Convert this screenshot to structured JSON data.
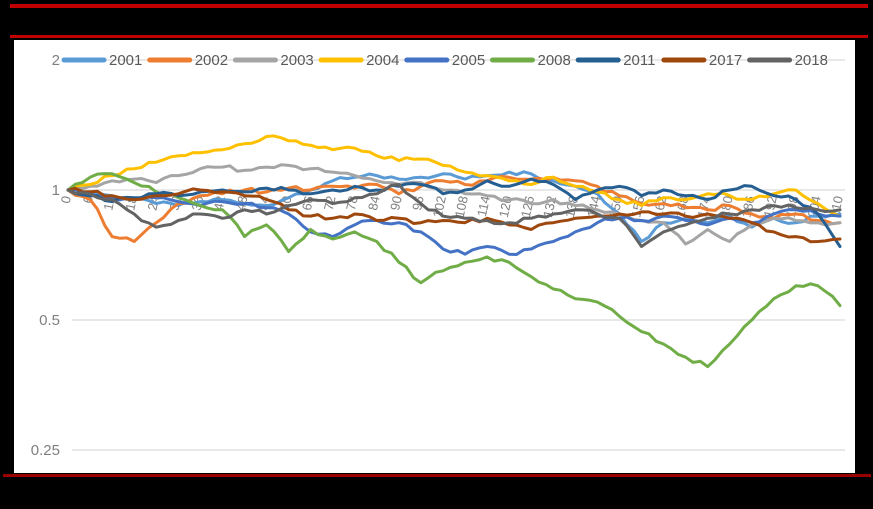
{
  "frame": {
    "background": "#000000",
    "top_rule_color": "#c00000",
    "mid_rule_color": "#c00000",
    "bottom_rule_color": "#990000",
    "panel_background": "#ffffff"
  },
  "chart_data": {
    "type": "line",
    "title": "",
    "xlabel": "",
    "ylabel": "",
    "legend_position": "top",
    "grid": true,
    "style": {
      "gridline_color": "#d9d9d9",
      "axis_label_color": "#7f7f7f",
      "tick_label_color": "#808080",
      "legend_text_color": "#595959"
    },
    "y_axis": {
      "scale": "log2",
      "range": [
        0.25,
        2
      ],
      "ticks": [
        {
          "value": 2,
          "label": "2"
        },
        {
          "value": 1,
          "label": "1"
        },
        {
          "value": 0.5,
          "label": "0.5"
        },
        {
          "value": 0.25,
          "label": "0.25"
        }
      ]
    },
    "x_axis": {
      "range": [
        0,
        215
      ],
      "tick_step": 6,
      "tick_labels": [
        "0",
        "6",
        "12",
        "18",
        "24",
        "30",
        "36",
        "42",
        "48",
        "54",
        "60",
        "66",
        "72",
        "78",
        "84",
        "90",
        "96",
        "102",
        "108",
        "114",
        "120",
        "126",
        "132",
        "138",
        "144",
        "150",
        "156",
        "162",
        "168",
        "174",
        "180",
        "186",
        "192",
        "198",
        "204",
        "210"
      ]
    },
    "x": [
      0,
      6,
      12,
      18,
      24,
      30,
      36,
      42,
      48,
      54,
      60,
      66,
      72,
      78,
      84,
      90,
      96,
      102,
      108,
      114,
      120,
      126,
      132,
      138,
      144,
      150,
      156,
      162,
      168,
      174,
      180,
      186,
      192,
      198,
      204,
      210
    ],
    "series": [
      {
        "name": "2001",
        "color": "#5B9BD5",
        "values": [
          1.0,
          0.99,
          0.97,
          0.95,
          0.93,
          0.92,
          0.94,
          0.95,
          0.93,
          0.92,
          0.96,
          1.0,
          1.05,
          1.07,
          1.08,
          1.06,
          1.07,
          1.09,
          1.06,
          1.08,
          1.1,
          1.09,
          1.05,
          1.02,
          0.98,
          0.88,
          0.76,
          0.84,
          0.86,
          0.84,
          0.87,
          0.82,
          0.86,
          0.84,
          0.87,
          0.88
        ]
      },
      {
        "name": "2002",
        "color": "#ED7D31",
        "values": [
          1.0,
          0.95,
          0.78,
          0.76,
          0.84,
          0.93,
          0.97,
          0.98,
          1.0,
          0.99,
          1.01,
          1.0,
          1.02,
          1.01,
          1.03,
          0.98,
          1.02,
          1.05,
          1.03,
          1.05,
          1.07,
          1.06,
          1.07,
          1.05,
          1.02,
          0.97,
          0.93,
          0.93,
          0.91,
          0.9,
          0.92,
          0.88,
          0.86,
          0.88,
          0.85,
          0.84
        ]
      },
      {
        "name": "2003",
        "color": "#A5A5A5",
        "values": [
          1.0,
          1.02,
          1.05,
          1.06,
          1.04,
          1.08,
          1.12,
          1.13,
          1.11,
          1.13,
          1.14,
          1.12,
          1.1,
          1.08,
          1.05,
          1.03,
          1.04,
          1.0,
          0.98,
          0.97,
          0.95,
          0.93,
          0.95,
          0.92,
          0.9,
          0.88,
          0.85,
          0.84,
          0.75,
          0.81,
          0.76,
          0.83,
          0.86,
          0.85,
          0.84,
          0.84
        ]
      },
      {
        "name": "2004",
        "color": "#FFC000",
        "values": [
          1.0,
          1.03,
          1.08,
          1.12,
          1.16,
          1.2,
          1.22,
          1.24,
          1.28,
          1.33,
          1.3,
          1.27,
          1.24,
          1.25,
          1.2,
          1.17,
          1.18,
          1.14,
          1.1,
          1.08,
          1.05,
          1.03,
          1.07,
          1.02,
          0.99,
          0.95,
          0.92,
          0.96,
          0.95,
          0.98,
          0.97,
          0.95,
          0.98,
          1.0,
          0.93,
          0.87
        ]
      },
      {
        "name": "2005",
        "color": "#4472C4",
        "values": [
          1.0,
          0.98,
          0.96,
          0.95,
          0.96,
          0.94,
          0.92,
          0.94,
          0.93,
          0.91,
          0.88,
          0.8,
          0.78,
          0.83,
          0.85,
          0.84,
          0.8,
          0.73,
          0.71,
          0.74,
          0.71,
          0.73,
          0.76,
          0.8,
          0.84,
          0.86,
          0.85,
          0.87,
          0.85,
          0.83,
          0.86,
          0.84,
          0.88,
          0.9,
          0.88,
          0.87
        ]
      },
      {
        "name": "2008",
        "color": "#70AD47",
        "values": [
          1.0,
          1.07,
          1.09,
          1.04,
          0.99,
          0.96,
          0.92,
          0.9,
          0.78,
          0.83,
          0.72,
          0.81,
          0.77,
          0.8,
          0.76,
          0.68,
          0.61,
          0.65,
          0.68,
          0.7,
          0.68,
          0.63,
          0.59,
          0.56,
          0.55,
          0.51,
          0.47,
          0.44,
          0.41,
          0.39,
          0.44,
          0.5,
          0.56,
          0.6,
          0.6,
          0.54
        ]
      },
      {
        "name": "2011",
        "color": "#255E91",
        "values": [
          1.0,
          0.97,
          0.94,
          0.96,
          0.98,
          0.97,
          0.99,
          1.0,
          0.99,
          1.01,
          1.0,
          0.98,
          1.0,
          1.02,
          1.0,
          1.02,
          1.03,
          0.98,
          1.0,
          1.05,
          1.02,
          1.06,
          1.03,
          0.95,
          1.0,
          1.02,
          0.97,
          1.0,
          0.97,
          0.95,
          1.0,
          1.02,
          0.97,
          0.95,
          0.88,
          0.74
        ]
      },
      {
        "name": "2017",
        "color": "#9E480E",
        "values": [
          1.0,
          0.99,
          0.97,
          0.95,
          0.97,
          0.98,
          1.0,
          0.99,
          0.97,
          0.95,
          0.9,
          0.87,
          0.86,
          0.88,
          0.85,
          0.86,
          0.84,
          0.85,
          0.84,
          0.86,
          0.83,
          0.81,
          0.84,
          0.86,
          0.87,
          0.88,
          0.89,
          0.88,
          0.87,
          0.88,
          0.86,
          0.84,
          0.8,
          0.78,
          0.76,
          0.77
        ]
      },
      {
        "name": "2018",
        "color": "#636363",
        "values": [
          1.0,
          0.98,
          0.95,
          0.88,
          0.82,
          0.85,
          0.88,
          0.86,
          0.9,
          0.88,
          0.92,
          0.95,
          0.93,
          0.96,
          0.98,
          1.03,
          0.93,
          0.87,
          0.86,
          0.85,
          0.84,
          0.86,
          0.88,
          0.9,
          0.88,
          0.86,
          0.74,
          0.8,
          0.83,
          0.86,
          0.88,
          0.9,
          0.92,
          0.91,
          0.9,
          0.9
        ]
      }
    ]
  }
}
